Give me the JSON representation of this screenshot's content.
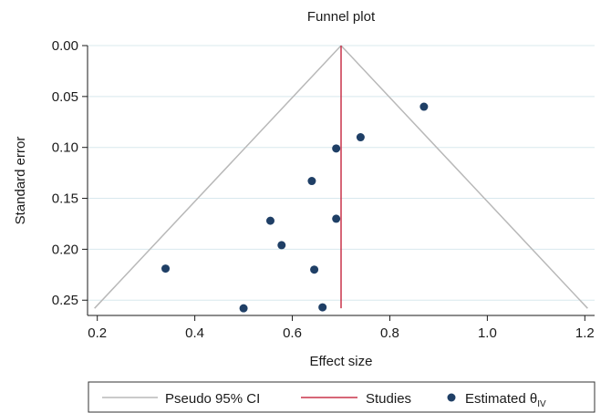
{
  "chart_data": {
    "type": "scatter",
    "title": "Funnel plot",
    "xlabel": "Effect size",
    "ylabel": "Standard error",
    "xlim": [
      0.18,
      1.22
    ],
    "ylim": [
      0.0,
      0.265
    ],
    "y_reversed": true,
    "grid": "horizontal",
    "xticks": [
      {
        "value": 0.2,
        "label": "0.2"
      },
      {
        "value": 0.4,
        "label": "0.4"
      },
      {
        "value": 0.6,
        "label": "0.6"
      },
      {
        "value": 0.8,
        "label": "0.8"
      },
      {
        "value": 1.0,
        "label": "1.0"
      },
      {
        "value": 1.2,
        "label": "1.2"
      }
    ],
    "yticks": [
      {
        "value": 0.0,
        "label": "0.00"
      },
      {
        "value": 0.05,
        "label": "0.05"
      },
      {
        "value": 0.1,
        "label": "0.10"
      },
      {
        "value": 0.15,
        "label": "0.15"
      },
      {
        "value": 0.2,
        "label": "0.20"
      },
      {
        "value": 0.25,
        "label": "0.25"
      }
    ],
    "pooled_estimate": 0.7,
    "ci_max_se": 0.258,
    "series": [
      {
        "name": "Pseudo 95% CI",
        "kind": "line",
        "color": "#b8b8b8"
      },
      {
        "name": "Studies",
        "kind": "line",
        "color": "#c8334a"
      },
      {
        "name": "Estimated θIV",
        "kind": "points",
        "color": "#1f3f66",
        "points": [
          {
            "x": 0.87,
            "y": 0.06
          },
          {
            "x": 0.74,
            "y": 0.09
          },
          {
            "x": 0.69,
            "y": 0.101
          },
          {
            "x": 0.64,
            "y": 0.133
          },
          {
            "x": 0.555,
            "y": 0.172
          },
          {
            "x": 0.69,
            "y": 0.17
          },
          {
            "x": 0.578,
            "y": 0.196
          },
          {
            "x": 0.34,
            "y": 0.219
          },
          {
            "x": 0.645,
            "y": 0.22
          },
          {
            "x": 0.5,
            "y": 0.258
          },
          {
            "x": 0.662,
            "y": 0.257
          }
        ]
      }
    ],
    "legend": {
      "position": "bottom",
      "entries": [
        {
          "label": "Pseudo 95% CI",
          "kind": "line",
          "color": "#b8b8b8"
        },
        {
          "label": "Studies",
          "kind": "line",
          "color": "#c8334a"
        },
        {
          "label": "Estimated θ",
          "subscript": "IV",
          "kind": "point",
          "color": "#1f3f66"
        }
      ]
    }
  }
}
